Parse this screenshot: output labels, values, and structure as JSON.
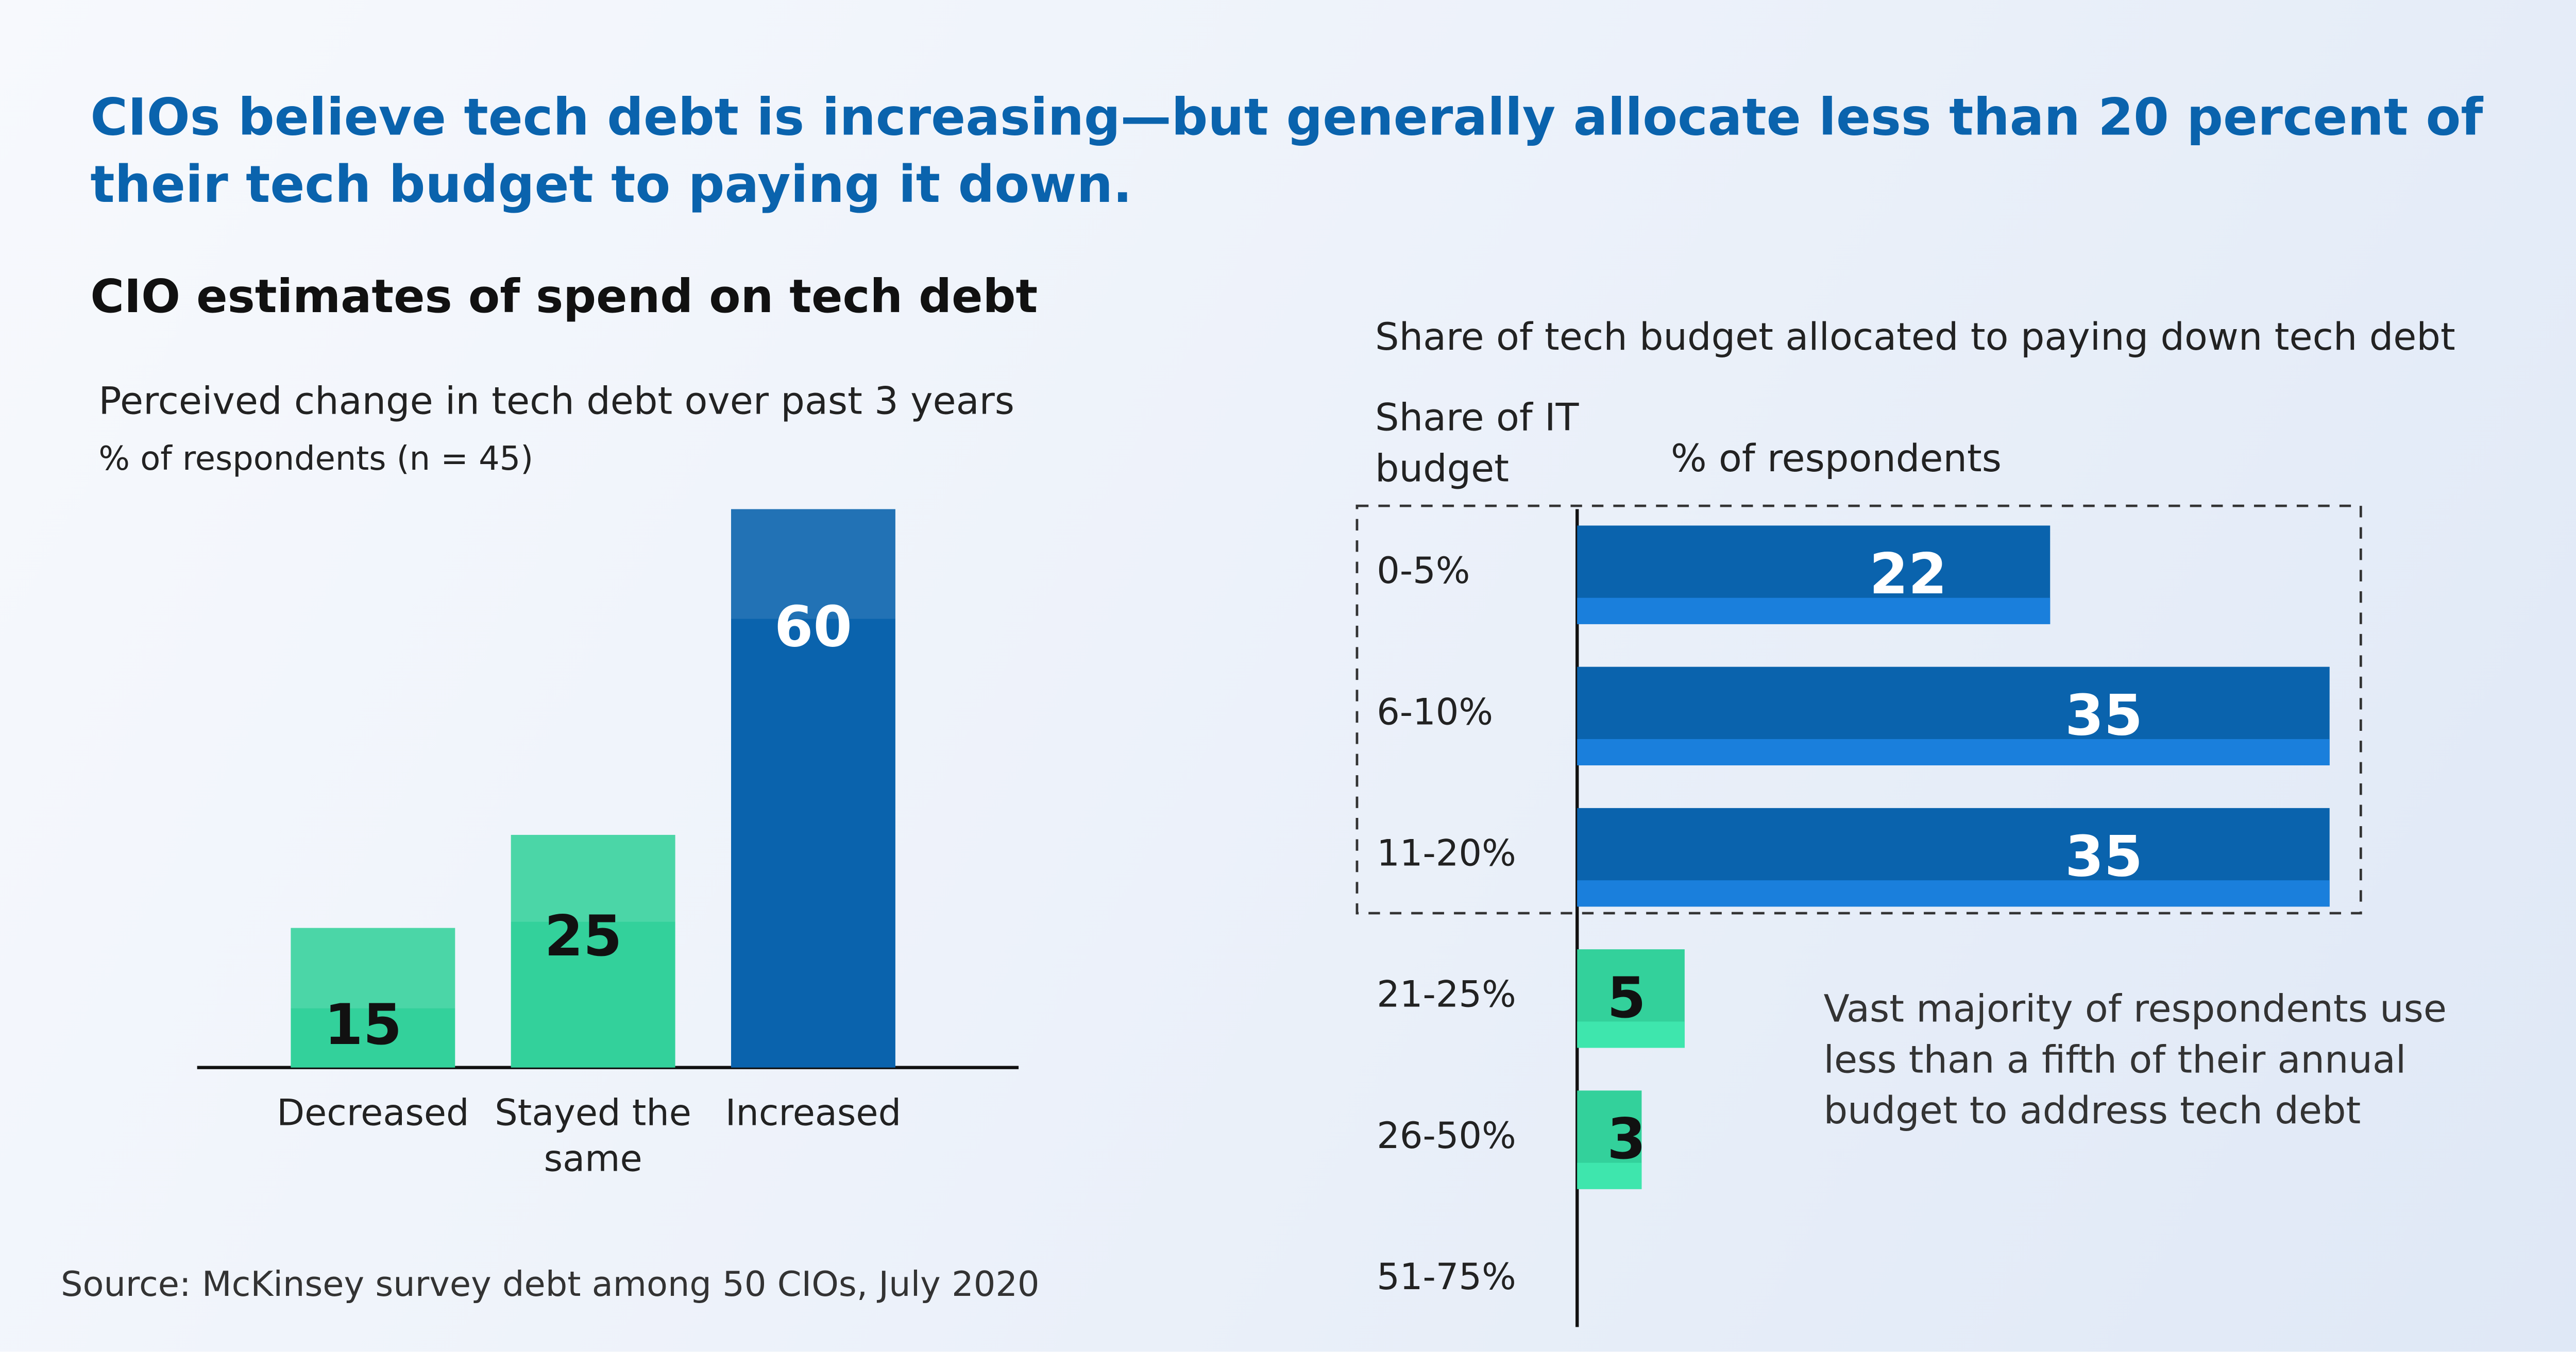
{
  "title": "CIOs believe tech debt is increasing—but generally allocate less than 20 percent of their tech budget to paying it down.",
  "source": "Source: McKinsey survey debt among 50 CIOs, July 2020",
  "chart_data": [
    {
      "type": "bar",
      "title": "CIO estimates of spend on tech debt",
      "subtitle": "Perceived change in tech debt over past 3 years",
      "y_label": "% of respondents (n = 45)",
      "categories": [
        "Decreased",
        "Stayed the same",
        "Increased"
      ],
      "values": [
        15,
        25,
        60
      ],
      "colors": [
        "#33d19b",
        "#33d19b",
        "#0a63ad"
      ]
    },
    {
      "type": "barh",
      "title": "Share of tech budget allocated to paying down tech debt",
      "y_label": "Share of IT budget",
      "x_label": "% of respondents",
      "categories": [
        "0-5%",
        "6-10%",
        "11-20%",
        "21-25%",
        "26-50%",
        "51-75%"
      ],
      "values": [
        22,
        35,
        35,
        5,
        3,
        null
      ],
      "colors": [
        "#0a63ad",
        "#0a63ad",
        "#0a63ad",
        "#33d19b",
        "#33d19b",
        "#33d19b"
      ],
      "annotation": "Vast majority of respondents use less than a fifth of their annual budget to address tech debt"
    }
  ]
}
